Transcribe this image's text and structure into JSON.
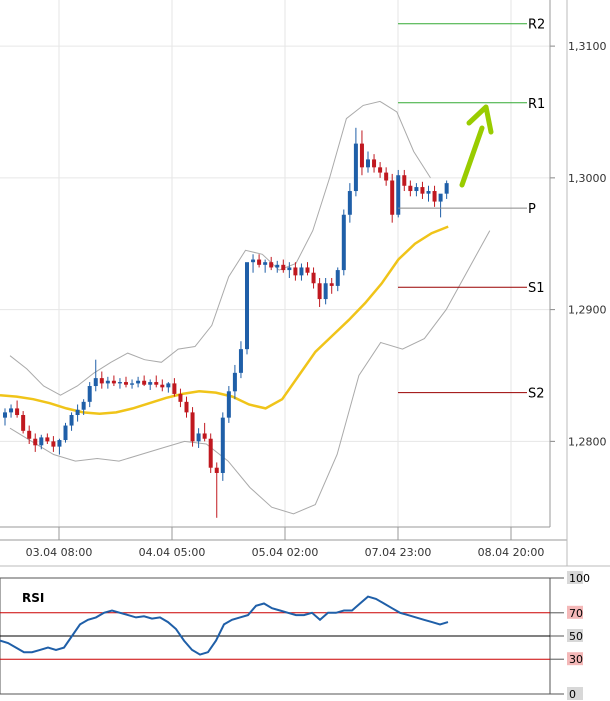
{
  "chart_data": [
    {
      "type": "candlestick",
      "panel": "price",
      "x_tick_labels": [
        "03.04 08:00",
        "04.04 05:00",
        "05.04 02:00",
        "07.04 23:00",
        "08.04 20:00"
      ],
      "y_tick_labels": [
        "1,2800",
        "1,2900",
        "1,3000",
        "1,3100"
      ],
      "ylim": [
        1.2735,
        1.3135
      ],
      "grid": true,
      "colors": {
        "up": "#1f5fa8",
        "down": "#c0181f",
        "moving_average": "#f0c419",
        "bollinger": "#aaaaaa"
      },
      "candles_ohlc": [
        [
          1.2818,
          1.2825,
          1.2812,
          1.2822
        ],
        [
          1.2822,
          1.2828,
          1.2818,
          1.2825
        ],
        [
          1.2825,
          1.2831,
          1.2818,
          1.282
        ],
        [
          1.282,
          1.2823,
          1.2806,
          1.2808
        ],
        [
          1.2808,
          1.2812,
          1.2798,
          1.2802
        ],
        [
          1.2802,
          1.2806,
          1.2792,
          1.2797
        ],
        [
          1.2797,
          1.2805,
          1.2794,
          1.2803
        ],
        [
          1.2803,
          1.2806,
          1.2798,
          1.28
        ],
        [
          1.28,
          1.2804,
          1.2792,
          1.2796
        ],
        [
          1.2796,
          1.2802,
          1.279,
          1.2801
        ],
        [
          1.2801,
          1.2814,
          1.2799,
          1.2812
        ],
        [
          1.2812,
          1.2822,
          1.2808,
          1.282
        ],
        [
          1.282,
          1.2828,
          1.2815,
          1.2824
        ],
        [
          1.2824,
          1.2832,
          1.282,
          1.283
        ],
        [
          1.283,
          1.2845,
          1.2826,
          1.2842
        ],
        [
          1.2842,
          1.2862,
          1.2838,
          1.2848
        ],
        [
          1.2848,
          1.2853,
          1.284,
          1.2844
        ],
        [
          1.2844,
          1.2849,
          1.284,
          1.2846
        ],
        [
          1.2846,
          1.285,
          1.2842,
          1.2844
        ],
        [
          1.2844,
          1.2848,
          1.284,
          1.2845
        ],
        [
          1.2845,
          1.2849,
          1.2841,
          1.2843
        ],
        [
          1.2843,
          1.2847,
          1.284,
          1.2844
        ],
        [
          1.2844,
          1.2849,
          1.2841,
          1.2846
        ],
        [
          1.2846,
          1.285,
          1.2842,
          1.2843
        ],
        [
          1.2843,
          1.2847,
          1.2839,
          1.2845
        ],
        [
          1.2845,
          1.285,
          1.2841,
          1.2843
        ],
        [
          1.2843,
          1.2847,
          1.2838,
          1.2841
        ],
        [
          1.2841,
          1.2845,
          1.2837,
          1.2844
        ],
        [
          1.2844,
          1.2848,
          1.2834,
          1.2836
        ],
        [
          1.2836,
          1.284,
          1.2826,
          1.283
        ],
        [
          1.283,
          1.2834,
          1.2818,
          1.2822
        ],
        [
          1.2822,
          1.2826,
          1.2796,
          1.28
        ],
        [
          1.28,
          1.281,
          1.2795,
          1.2806
        ],
        [
          1.2806,
          1.2814,
          1.28,
          1.2802
        ],
        [
          1.2802,
          1.2806,
          1.2776,
          1.278
        ],
        [
          1.278,
          1.2784,
          1.2742,
          1.2776
        ],
        [
          1.2776,
          1.2822,
          1.277,
          1.2818
        ],
        [
          1.2818,
          1.2842,
          1.2814,
          1.2838
        ],
        [
          1.2838,
          1.2858,
          1.2832,
          1.2852
        ],
        [
          1.2852,
          1.2876,
          1.2848,
          1.287
        ],
        [
          1.287,
          1.292,
          1.2866,
          1.2936
        ],
        [
          1.2936,
          1.2942,
          1.2928,
          1.2938
        ],
        [
          1.2938,
          1.2942,
          1.2932,
          1.2934
        ],
        [
          1.2934,
          1.2938,
          1.2928,
          1.2936
        ],
        [
          1.2936,
          1.294,
          1.293,
          1.2932
        ],
        [
          1.2932,
          1.2937,
          1.2928,
          1.2934
        ],
        [
          1.2934,
          1.2938,
          1.2928,
          1.293
        ],
        [
          1.293,
          1.2936,
          1.2924,
          1.2932
        ],
        [
          1.2932,
          1.2936,
          1.2922,
          1.2926
        ],
        [
          1.2926,
          1.2935,
          1.2922,
          1.2932
        ],
        [
          1.2932,
          1.2936,
          1.2926,
          1.2928
        ],
        [
          1.2928,
          1.2932,
          1.2916,
          1.292
        ],
        [
          1.292,
          1.2924,
          1.2902,
          1.2908
        ],
        [
          1.2908,
          1.2924,
          1.2904,
          1.292
        ],
        [
          1.292,
          1.2924,
          1.2912,
          1.2918
        ],
        [
          1.2918,
          1.2932,
          1.2914,
          1.293
        ],
        [
          1.293,
          1.2976,
          1.2926,
          1.2972
        ],
        [
          1.2972,
          1.2996,
          1.2966,
          1.299
        ],
        [
          1.299,
          1.3038,
          1.2986,
          1.3026
        ],
        [
          1.3026,
          1.3036,
          1.3002,
          1.3008
        ],
        [
          1.3008,
          1.302,
          1.3004,
          1.3014
        ],
        [
          1.3014,
          1.3018,
          1.3004,
          1.3008
        ],
        [
          1.3008,
          1.3012,
          1.3,
          1.3004
        ],
        [
          1.3004,
          1.3008,
          1.2994,
          1.2998
        ],
        [
          1.2998,
          1.3003,
          1.2966,
          1.2972
        ],
        [
          1.2972,
          1.3006,
          1.297,
          1.3002
        ],
        [
          1.3002,
          1.3006,
          1.299,
          1.2994
        ],
        [
          1.2994,
          1.2998,
          1.2986,
          1.299
        ],
        [
          1.299,
          1.2996,
          1.2986,
          1.2993
        ],
        [
          1.2993,
          1.2997,
          1.2984,
          1.2988
        ],
        [
          1.2988,
          1.2994,
          1.2982,
          1.299
        ],
        [
          1.299,
          1.2994,
          1.2978,
          1.2982
        ],
        [
          1.2982,
          1.2986,
          1.297,
          1.2988
        ],
        [
          1.2988,
          1.2998,
          1.2984,
          1.2996
        ]
      ],
      "moving_average": [
        1.2835,
        1.2834,
        1.2832,
        1.2829,
        1.2825,
        1.2822,
        1.2821,
        1.2822,
        1.2825,
        1.2829,
        1.2833,
        1.2836,
        1.2838,
        1.2837,
        1.2834,
        1.2828,
        1.2825,
        1.2832,
        1.285,
        1.2868,
        1.288,
        1.2892,
        1.2905,
        1.292,
        1.2938,
        1.295,
        1.2958,
        1.2963
      ],
      "bollinger_upper": [
        1.2865,
        1.2855,
        1.2842,
        1.2835,
        1.2842,
        1.2852,
        1.286,
        1.2867,
        1.2862,
        1.286,
        1.287,
        1.2872,
        1.2888,
        1.2925,
        1.2945,
        1.2942,
        1.293,
        1.2935,
        1.296,
        1.3,
        1.3045,
        1.3055,
        1.3058,
        1.305,
        1.302,
        1.3
      ],
      "bollinger_lower": [
        1.281,
        1.28,
        1.279,
        1.2785,
        1.2787,
        1.2785,
        1.279,
        1.2795,
        1.28,
        1.2798,
        1.2785,
        1.2765,
        1.275,
        1.2745,
        1.2752,
        1.279,
        1.285,
        1.2875,
        1.287,
        1.2878,
        1.29,
        1.293,
        1.296
      ],
      "levels": [
        {
          "label": "R2",
          "value": 1.3117,
          "color": "#33aa33"
        },
        {
          "label": "R1",
          "value": 1.3057,
          "color": "#33aa33"
        },
        {
          "label": "P",
          "value": 1.2977,
          "color": "#888888"
        },
        {
          "label": "S1",
          "value": 1.2917,
          "color": "#990000"
        },
        {
          "label": "S2",
          "value": 1.2837,
          "color": "#990000"
        }
      ],
      "annotation": {
        "type": "arrow",
        "direction": "up",
        "color": "#99cc00"
      }
    },
    {
      "type": "line",
      "panel": "indicator",
      "title": "RSI",
      "y_tick_labels": [
        "100",
        "70",
        "50",
        "30",
        "0"
      ],
      "ylim": [
        0,
        100
      ],
      "reference_lines": [
        {
          "value": 70,
          "color": "#cc0000"
        },
        {
          "value": 50,
          "color": "#000000"
        },
        {
          "value": 30,
          "color": "#cc0000"
        }
      ],
      "series": [
        {
          "color": "#1f5fa8",
          "values": [
            46,
            44,
            40,
            36,
            36,
            38,
            40,
            38,
            40,
            50,
            60,
            64,
            66,
            70,
            72,
            70,
            68,
            66,
            67,
            65,
            66,
            62,
            56,
            46,
            38,
            34,
            36,
            46,
            60,
            64,
            66,
            68,
            76,
            78,
            74,
            72,
            70,
            68,
            68,
            70,
            64,
            70,
            70,
            72,
            72,
            78,
            84,
            82,
            78,
            74,
            70,
            68,
            66,
            64,
            62,
            60,
            62
          ]
        }
      ]
    }
  ]
}
